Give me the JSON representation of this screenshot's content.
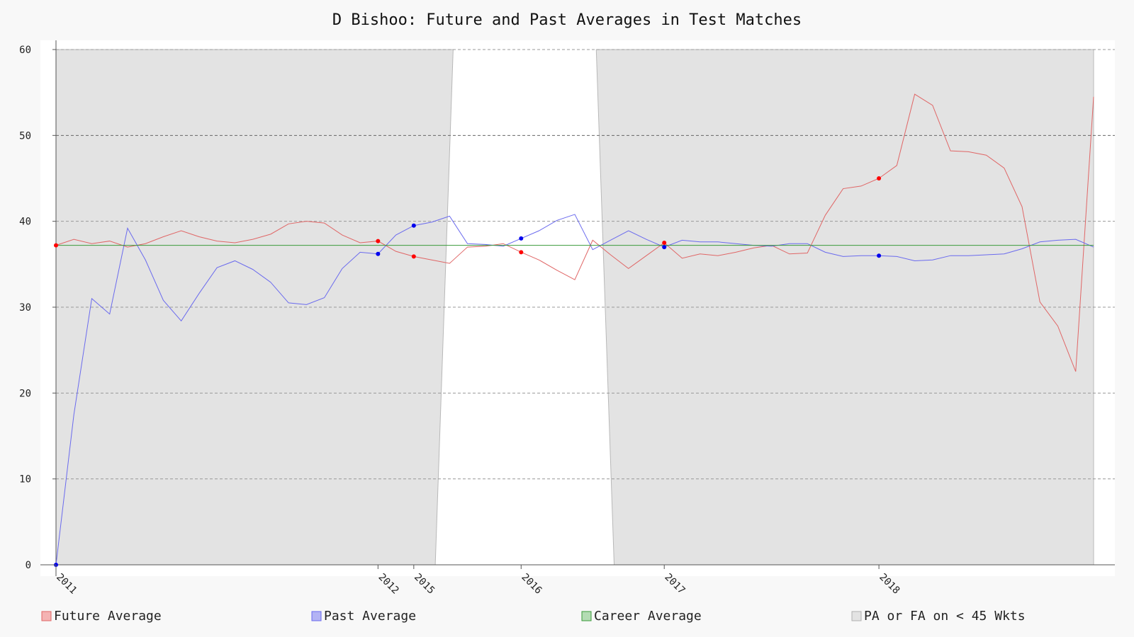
{
  "chart_data": {
    "type": "line",
    "title": "D Bishoo: Future and Past Averages in Test Matches",
    "xlabel": "",
    "ylabel": "",
    "ylim": [
      0,
      60
    ],
    "yticks": [
      0,
      10,
      20,
      30,
      40,
      50,
      60
    ],
    "grid": true,
    "legend_position": "bottom",
    "x_tick_labels": [
      {
        "label": "2011",
        "index": 0
      },
      {
        "label": "2012",
        "index": 18
      },
      {
        "label": "2015",
        "index": 20
      },
      {
        "label": "2016",
        "index": 26
      },
      {
        "label": "2017",
        "index": 34
      },
      {
        "label": "2018",
        "index": 46
      }
    ],
    "series": [
      {
        "name": "Future Average",
        "color": "#e06666",
        "values": [
          37.2,
          37.9,
          37.4,
          37.7,
          37.0,
          37.4,
          38.2,
          38.9,
          38.2,
          37.7,
          37.5,
          37.9,
          38.5,
          39.7,
          40.0,
          39.8,
          38.4,
          37.5,
          37.7,
          36.5,
          35.9,
          35.5,
          35.1,
          37.0,
          37.1,
          37.4,
          36.4,
          35.5,
          34.3,
          33.2,
          37.8,
          36.1,
          34.5,
          36.0,
          37.5,
          35.7,
          36.2,
          36.0,
          36.4,
          36.9,
          37.2,
          36.2,
          36.3,
          40.7,
          43.8,
          44.1,
          45.0,
          46.5,
          54.8,
          53.5,
          48.2,
          48.1,
          47.7,
          46.2,
          41.7,
          30.6,
          27.8,
          22.5,
          54.5
        ],
        "markers": [
          0,
          18,
          20,
          26,
          34,
          46
        ]
      },
      {
        "name": "Past Average",
        "color": "#6a6aee",
        "values": [
          0.0,
          17.5,
          31.0,
          29.2,
          39.2,
          35.5,
          30.8,
          28.4,
          31.6,
          34.6,
          35.4,
          34.4,
          32.9,
          30.5,
          30.3,
          31.1,
          34.5,
          36.4,
          36.2,
          38.4,
          39.5,
          39.9,
          40.6,
          37.4,
          37.3,
          37.1,
          38.0,
          38.9,
          40.1,
          40.8,
          36.7,
          37.8,
          38.9,
          37.9,
          37.0,
          37.8,
          37.6,
          37.6,
          37.4,
          37.2,
          37.1,
          37.4,
          37.4,
          36.4,
          35.9,
          36.0,
          36.0,
          35.9,
          35.4,
          35.5,
          36.0,
          36.0,
          36.1,
          36.2,
          36.8,
          37.6,
          37.8,
          37.9,
          37.0
        ],
        "markers": [
          0,
          18,
          20,
          26,
          34,
          46
        ]
      },
      {
        "name": "Career Average",
        "color": "#3a9a3a",
        "values": [
          37.2,
          37.2
        ]
      }
    ],
    "shaded": {
      "name": "PA or FA on < 45 Wkts",
      "color": "#e3e3e3",
      "polygon": [
        [
          0,
          0
        ],
        [
          0,
          60
        ],
        [
          22.2,
          60
        ],
        [
          22.2,
          0
        ],
        [
          21.2,
          0
        ]
      ],
      "regions": [
        [
          [
            0,
            0
          ],
          [
            0,
            60
          ],
          [
            22.2,
            60
          ],
          [
            21.2,
            0
          ]
        ],
        [
          [
            31.2,
            0
          ],
          [
            30.2,
            60
          ],
          [
            58,
            60
          ],
          [
            58,
            0
          ]
        ]
      ]
    },
    "point_count": 59
  },
  "legend": [
    {
      "label": "Future Average",
      "swatch": "#f4b3b3",
      "border": "#e06666"
    },
    {
      "label": "Past Average",
      "swatch": "#b3b3f4",
      "border": "#6a6aee"
    },
    {
      "label": "Career Average",
      "swatch": "#b3dcb3",
      "border": "#3a9a3a"
    },
    {
      "label": "PA or FA on < 45 Wkts",
      "swatch": "#e3e3e3",
      "border": "#b0b0b0"
    }
  ]
}
